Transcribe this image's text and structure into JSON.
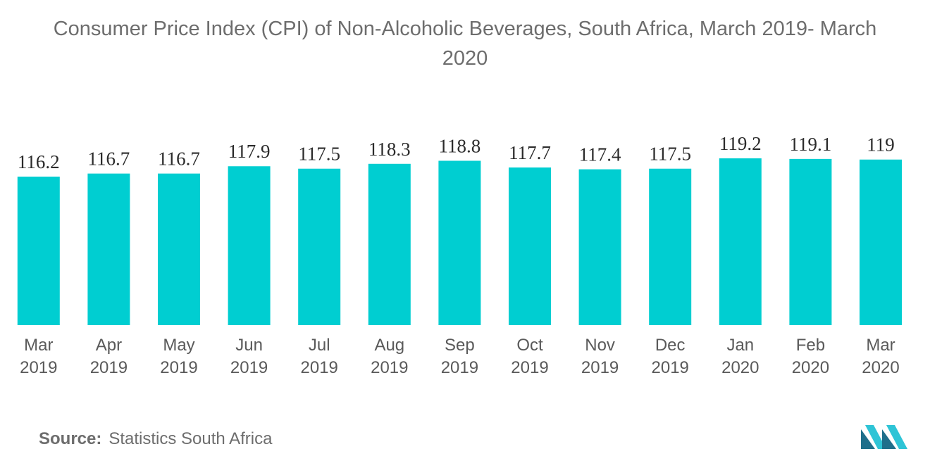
{
  "title_line1": "Consumer Price Index (CPI) of Non-Alcoholic Beverages, South Africa, March 2019- March",
  "title_line2": "2020",
  "source_label": "Source:",
  "source_text": "Statistics South Africa",
  "chart_data": {
    "type": "bar",
    "title": "Consumer Price Index (CPI) of Non-Alcoholic Beverages, South Africa, March 2019- March 2020",
    "categories": [
      [
        "Mar",
        "2019"
      ],
      [
        "Apr",
        "2019"
      ],
      [
        "May",
        "2019"
      ],
      [
        "Jun",
        "2019"
      ],
      [
        "Jul",
        "2019"
      ],
      [
        "Aug",
        "2019"
      ],
      [
        "Sep",
        "2019"
      ],
      [
        "Oct",
        "2019"
      ],
      [
        "Nov",
        "2019"
      ],
      [
        "Dec",
        "2019"
      ],
      [
        "Jan",
        "2020"
      ],
      [
        "Feb",
        "2020"
      ],
      [
        "Mar",
        "2020"
      ]
    ],
    "values": [
      116.2,
      116.7,
      116.7,
      117.9,
      117.5,
      118.3,
      118.8,
      117.7,
      117.4,
      117.5,
      119.2,
      119.1,
      119
    ],
    "value_labels": [
      "116.2",
      "116.7",
      "116.7",
      "117.9",
      "117.5",
      "118.3",
      "118.8",
      "117.7",
      "117.4",
      "117.5",
      "119.2",
      "119.1",
      "119"
    ],
    "xlabel": "",
    "ylabel": "",
    "grid": false,
    "legend": "none",
    "bar_color": "#00ced1"
  }
}
